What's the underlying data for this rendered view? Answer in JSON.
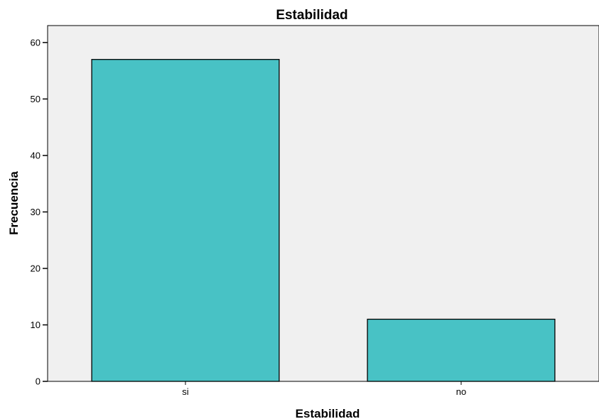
{
  "chart_data": {
    "type": "bar",
    "title": "Estabilidad",
    "xlabel": "Estabilidad",
    "ylabel": "Frecuencia",
    "categories": [
      "si",
      "no"
    ],
    "values": [
      57,
      11
    ],
    "ylim": [
      0,
      63
    ],
    "yticks": [
      0,
      10,
      20,
      30,
      40,
      50,
      60
    ],
    "grid": false,
    "colors": {
      "bar": "#48c2c5",
      "plot_background": "#f0f0f0",
      "bar_stroke": "#000000"
    }
  }
}
